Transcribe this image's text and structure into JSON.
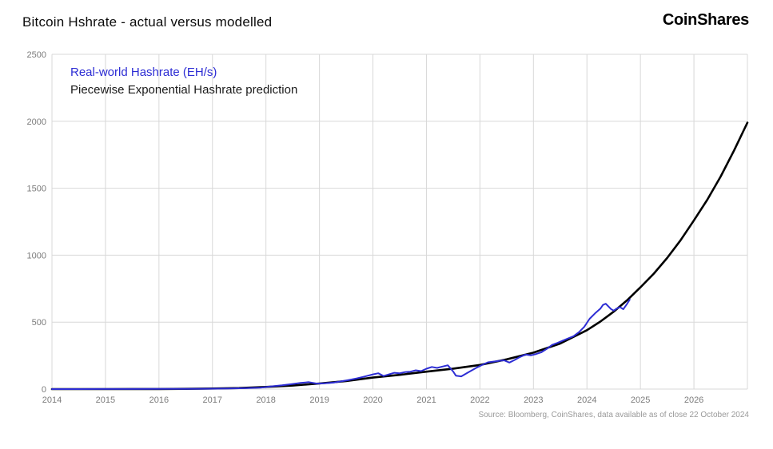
{
  "header": {
    "title": "Bitcoin Hshrate - actual versus modelled",
    "logo": "CoinShares"
  },
  "footer": {
    "source": "Source: Bloomberg, CoinShares, data available as of close 22 October 2024"
  },
  "chart_data": {
    "type": "line",
    "title": "Bitcoin Hshrate - actual versus modelled",
    "xlabel": "",
    "ylabel": "",
    "xlim": [
      2014,
      2027
    ],
    "ylim": [
      0,
      2500
    ],
    "x_ticks": [
      2014,
      2015,
      2016,
      2017,
      2018,
      2019,
      2020,
      2021,
      2022,
      2023,
      2024,
      2025,
      2026
    ],
    "y_ticks": [
      0,
      500,
      1000,
      1500,
      2000,
      2500
    ],
    "grid": true,
    "grid_color": "#d8d8d8",
    "tick_color": "#7b7b7b",
    "legend_position": "top-left-inside",
    "source_note": "Source: Bloomberg, CoinShares, data available as of close 22 October 2024",
    "series": [
      {
        "name": "Real-world Hashrate (EH/s)",
        "color": "#2d2dd4",
        "width": 2,
        "points": [
          [
            2014.0,
            0.02
          ],
          [
            2014.5,
            0.15
          ],
          [
            2015.0,
            0.35
          ],
          [
            2015.5,
            0.45
          ],
          [
            2016.0,
            1.3
          ],
          [
            2016.5,
            1.6
          ],
          [
            2017.0,
            2.8
          ],
          [
            2017.3,
            4
          ],
          [
            2017.6,
            6.5
          ],
          [
            2017.9,
            11
          ],
          [
            2018.1,
            20
          ],
          [
            2018.3,
            28
          ],
          [
            2018.5,
            38
          ],
          [
            2018.65,
            46
          ],
          [
            2018.8,
            52
          ],
          [
            2018.95,
            41
          ],
          [
            2019.1,
            43
          ],
          [
            2019.25,
            48
          ],
          [
            2019.4,
            57
          ],
          [
            2019.55,
            68
          ],
          [
            2019.7,
            80
          ],
          [
            2019.85,
            94
          ],
          [
            2020.0,
            110
          ],
          [
            2020.1,
            118
          ],
          [
            2020.2,
            98
          ],
          [
            2020.3,
            110
          ],
          [
            2020.4,
            122
          ],
          [
            2020.5,
            118
          ],
          [
            2020.6,
            127
          ],
          [
            2020.7,
            130
          ],
          [
            2020.8,
            140
          ],
          [
            2020.9,
            134
          ],
          [
            2021.0,
            152
          ],
          [
            2021.1,
            165
          ],
          [
            2021.2,
            158
          ],
          [
            2021.3,
            168
          ],
          [
            2021.4,
            178
          ],
          [
            2021.5,
            131
          ],
          [
            2021.55,
            100
          ],
          [
            2021.65,
            95
          ],
          [
            2021.75,
            118
          ],
          [
            2021.85,
            140
          ],
          [
            2021.95,
            162
          ],
          [
            2022.05,
            182
          ],
          [
            2022.15,
            200
          ],
          [
            2022.25,
            205
          ],
          [
            2022.35,
            210
          ],
          [
            2022.45,
            215
          ],
          [
            2022.55,
            198
          ],
          [
            2022.65,
            218
          ],
          [
            2022.75,
            240
          ],
          [
            2022.85,
            258
          ],
          [
            2022.95,
            252
          ],
          [
            2023.05,
            262
          ],
          [
            2023.15,
            275
          ],
          [
            2023.25,
            300
          ],
          [
            2023.35,
            330
          ],
          [
            2023.45,
            345
          ],
          [
            2023.55,
            362
          ],
          [
            2023.65,
            378
          ],
          [
            2023.75,
            395
          ],
          [
            2023.85,
            425
          ],
          [
            2023.95,
            465
          ],
          [
            2024.05,
            525
          ],
          [
            2024.15,
            565
          ],
          [
            2024.25,
            600
          ],
          [
            2024.3,
            628
          ],
          [
            2024.35,
            638
          ],
          [
            2024.45,
            598
          ],
          [
            2024.5,
            586
          ],
          [
            2024.55,
            600
          ],
          [
            2024.62,
            612
          ],
          [
            2024.68,
            596
          ],
          [
            2024.75,
            636
          ],
          [
            2024.8,
            668
          ]
        ]
      },
      {
        "name": "Piecewise Exponential Hashrate prediction",
        "color": "#000000",
        "width": 2.6,
        "points": [
          [
            2014.0,
            0.03
          ],
          [
            2014.5,
            0.07
          ],
          [
            2015.0,
            0.15
          ],
          [
            2015.5,
            0.35
          ],
          [
            2016.0,
            0.8
          ],
          [
            2016.5,
            1.8
          ],
          [
            2017.0,
            4
          ],
          [
            2017.5,
            8
          ],
          [
            2018.0,
            16
          ],
          [
            2018.5,
            26
          ],
          [
            2019.0,
            42
          ],
          [
            2019.5,
            60
          ],
          [
            2020.0,
            86
          ],
          [
            2020.5,
            106
          ],
          [
            2021.0,
            130
          ],
          [
            2021.5,
            153
          ],
          [
            2022.0,
            180
          ],
          [
            2022.5,
            222
          ],
          [
            2023.0,
            272
          ],
          [
            2023.5,
            340
          ],
          [
            2024.0,
            440
          ],
          [
            2024.25,
            504
          ],
          [
            2024.5,
            578
          ],
          [
            2024.75,
            663
          ],
          [
            2025.0,
            760
          ],
          [
            2025.25,
            862
          ],
          [
            2025.5,
            979
          ],
          [
            2025.75,
            1111
          ],
          [
            2026.0,
            1260
          ],
          [
            2026.25,
            1414
          ],
          [
            2026.5,
            1587
          ],
          [
            2026.75,
            1782
          ],
          [
            2027.0,
            1990
          ]
        ]
      }
    ]
  }
}
